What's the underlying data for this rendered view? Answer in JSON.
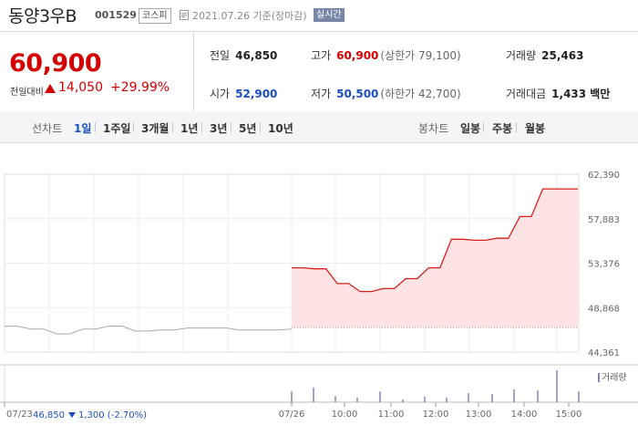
{
  "header": {
    "name": "동양3우B",
    "code": "001529",
    "market": "코스피",
    "date_text": "2021.07.26 기준(장마감)",
    "realtime": "실시간"
  },
  "price": {
    "current": "60,900",
    "change_label": "전일대비",
    "change_amount": "14,050",
    "change_pct": "+29.99%"
  },
  "stats": {
    "prev_close_label": "전일",
    "prev_close": "46,850",
    "high_label": "고가",
    "high": "60,900",
    "upper_limit": "(상한가 79,100)",
    "volume_label": "거래량",
    "volume": "25,463",
    "open_label": "시가",
    "open": "52,900",
    "low_label": "저가",
    "low": "50,500",
    "lower_limit": "(하한가 42,700)",
    "trade_value_label": "거래대금",
    "trade_value": "1,433 백만"
  },
  "period": {
    "line_label": "선차트",
    "line_items": [
      "1일",
      "1주일",
      "3개월",
      "1년",
      "3년",
      "5년",
      "10년"
    ],
    "active": "1일",
    "candle_label": "봉차트",
    "candle_items": [
      "일봉",
      "주봉",
      "월봉"
    ]
  },
  "colors": {
    "up": "#d40000",
    "down": "#1a4fc4",
    "fill": "#fde3e3",
    "line": "#d9201c"
  },
  "chart_data": {
    "type": "line",
    "y_ticks": [
      "62,390",
      "57,883",
      "53,376",
      "48,868",
      "44,361"
    ],
    "ylim": [
      44361,
      62390
    ],
    "x_labels": [
      "07/23",
      "07/26",
      "10:00",
      "11:00",
      "12:00",
      "13:00",
      "14:00",
      "15:00"
    ],
    "prev_day_series": [
      46990,
      46990,
      46700,
      46700,
      46200,
      46200,
      46700,
      46700,
      47000,
      47000,
      46500,
      46500,
      46600,
      46600,
      46800,
      46800,
      46800,
      46800,
      46600,
      46600,
      46600,
      46600,
      46700
    ],
    "today_series": [
      52900,
      52900,
      52800,
      52800,
      51300,
      51300,
      50500,
      50500,
      50800,
      50800,
      51800,
      51800,
      52900,
      52900,
      55800,
      55800,
      55700,
      55700,
      55900,
      55900,
      58100,
      58100,
      60900,
      60900
    ],
    "baseline": 46850,
    "volume_legend": "거래량",
    "footer_prev": "07/23",
    "footer_price": "46,850",
    "footer_change": "1,300 (-2.70%)"
  }
}
